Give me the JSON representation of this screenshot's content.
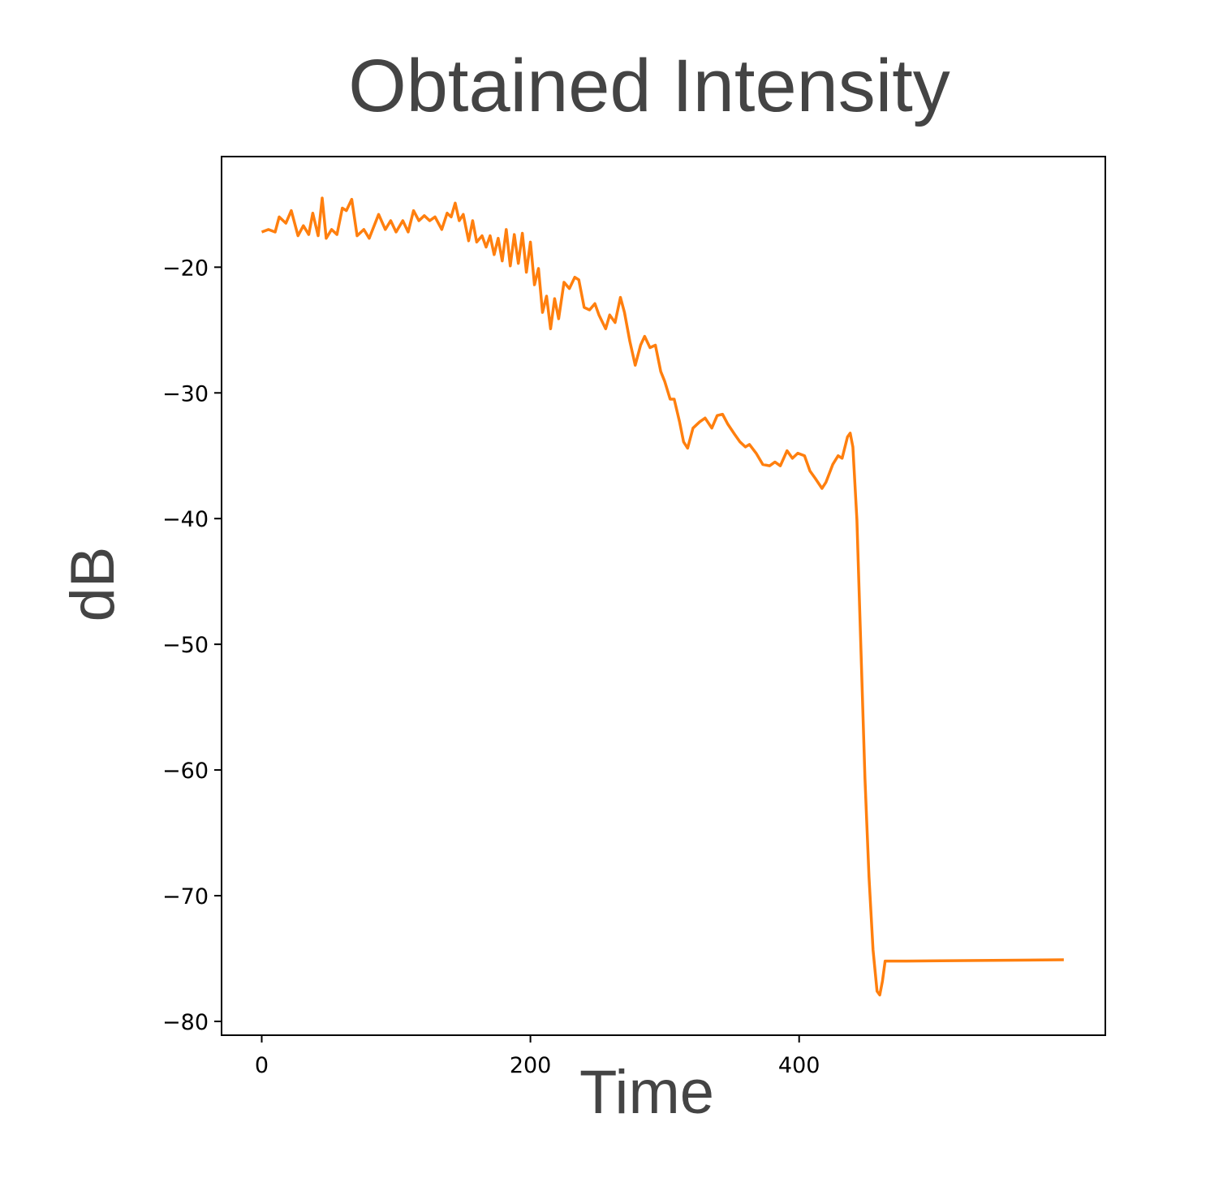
{
  "chart_data": {
    "type": "line",
    "title": "Obtained Intensity",
    "x_label": "Time",
    "y_label": "dB",
    "xlim": [
      -29.9,
      627.9
    ],
    "ylim": [
      -81.1,
      -11.2
    ],
    "xticks": [
      0,
      200,
      400
    ],
    "yticks": [
      {
        "value": -20,
        "label": "−20"
      },
      {
        "value": -30,
        "label": "−30"
      },
      {
        "value": -40,
        "label": "−40"
      },
      {
        "value": -50,
        "label": "−50"
      },
      {
        "value": -60,
        "label": "−60"
      },
      {
        "value": -70,
        "label": "−70"
      },
      {
        "value": -80,
        "label": "−80"
      }
    ],
    "x": [
      0,
      5,
      10,
      13,
      18,
      22,
      27,
      31,
      35,
      38,
      42,
      45,
      48,
      52,
      56,
      60,
      63,
      67,
      71,
      76,
      80,
      87,
      92,
      96,
      100,
      105,
      109,
      113,
      117,
      121,
      125,
      129,
      134,
      138,
      141,
      144,
      147,
      150,
      154,
      157,
      160,
      164,
      167,
      170,
      173,
      176,
      179,
      182,
      185,
      188,
      191,
      194,
      197,
      200,
      203,
      206,
      209,
      212,
      215,
      218,
      221,
      225,
      229,
      233,
      236,
      240,
      244,
      248,
      251,
      256,
      259,
      263,
      267,
      270,
      274,
      278,
      282,
      285,
      289,
      293,
      297,
      300,
      304,
      307,
      311,
      314,
      317,
      321,
      326,
      330,
      335,
      339,
      343,
      347,
      352,
      356,
      360,
      363,
      368,
      373,
      378,
      382,
      386,
      391,
      395,
      399,
      404,
      408,
      412,
      417,
      420,
      425,
      429,
      432,
      436,
      438,
      440,
      443,
      446,
      449,
      452,
      455,
      458,
      460,
      462,
      464,
      480,
      597
    ],
    "series": [
      {
        "name": "dB",
        "color": "#ff7f0e",
        "values": [
          -17.2,
          -17.0,
          -17.2,
          -16.0,
          -16.5,
          -15.5,
          -17.5,
          -16.7,
          -17.4,
          -15.7,
          -17.5,
          -14.5,
          -17.7,
          -17.0,
          -17.4,
          -15.3,
          -15.5,
          -14.6,
          -17.5,
          -17.0,
          -17.7,
          -15.8,
          -17.0,
          -16.3,
          -17.2,
          -16.3,
          -17.2,
          -15.5,
          -16.3,
          -15.9,
          -16.3,
          -16.0,
          -17.0,
          -15.7,
          -16.0,
          -14.9,
          -16.3,
          -15.8,
          -17.9,
          -16.3,
          -18.0,
          -17.5,
          -18.4,
          -17.5,
          -19.0,
          -17.7,
          -19.5,
          -17.0,
          -19.9,
          -17.4,
          -19.7,
          -17.3,
          -20.4,
          -18.0,
          -21.4,
          -20.1,
          -23.6,
          -22.3,
          -24.9,
          -22.5,
          -24.1,
          -21.2,
          -21.7,
          -20.8,
          -21.0,
          -23.2,
          -23.4,
          -22.9,
          -23.8,
          -24.9,
          -23.8,
          -24.4,
          -22.4,
          -23.6,
          -25.9,
          -27.8,
          -26.2,
          -25.5,
          -26.4,
          -26.2,
          -28.3,
          -29.1,
          -30.5,
          -30.5,
          -32.3,
          -33.9,
          -34.4,
          -32.8,
          -32.3,
          -32.0,
          -32.8,
          -31.8,
          -31.7,
          -32.5,
          -33.3,
          -33.9,
          -34.3,
          -34.1,
          -34.8,
          -35.7,
          -35.8,
          -35.5,
          -35.8,
          -34.6,
          -35.2,
          -34.8,
          -35.0,
          -36.2,
          -36.8,
          -37.6,
          -37.1,
          -35.7,
          -35.0,
          -35.2,
          -33.5,
          -33.2,
          -34.3,
          -40.1,
          -50.4,
          -60.7,
          -68.5,
          -74.3,
          -77.6,
          -77.9,
          -76.8,
          -75.2,
          -75.2,
          -75.1
        ]
      }
    ]
  }
}
